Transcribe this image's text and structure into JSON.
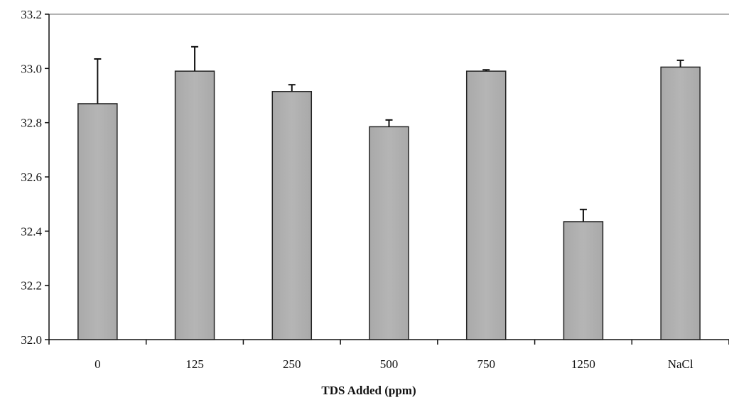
{
  "chart_data": {
    "type": "bar",
    "title": "",
    "xlabel": "TDS Added (ppm)",
    "ylabel": "",
    "categories": [
      "0",
      "125",
      "250",
      "500",
      "750",
      "1250",
      "NaCl"
    ],
    "values": [
      32.87,
      32.99,
      32.915,
      32.785,
      32.99,
      32.435,
      33.005
    ],
    "error_plus": [
      0.165,
      0.09,
      0.025,
      0.025,
      0.005,
      0.045,
      0.025
    ],
    "ylim": [
      32.0,
      33.2
    ],
    "yticks": [
      "32.0",
      "32.2",
      "32.4",
      "32.6",
      "32.8",
      "33.0",
      "33.2"
    ],
    "grid": false,
    "legend": "none",
    "bar_color": "#b5b5b5",
    "bar_edge_color": "#222222"
  }
}
